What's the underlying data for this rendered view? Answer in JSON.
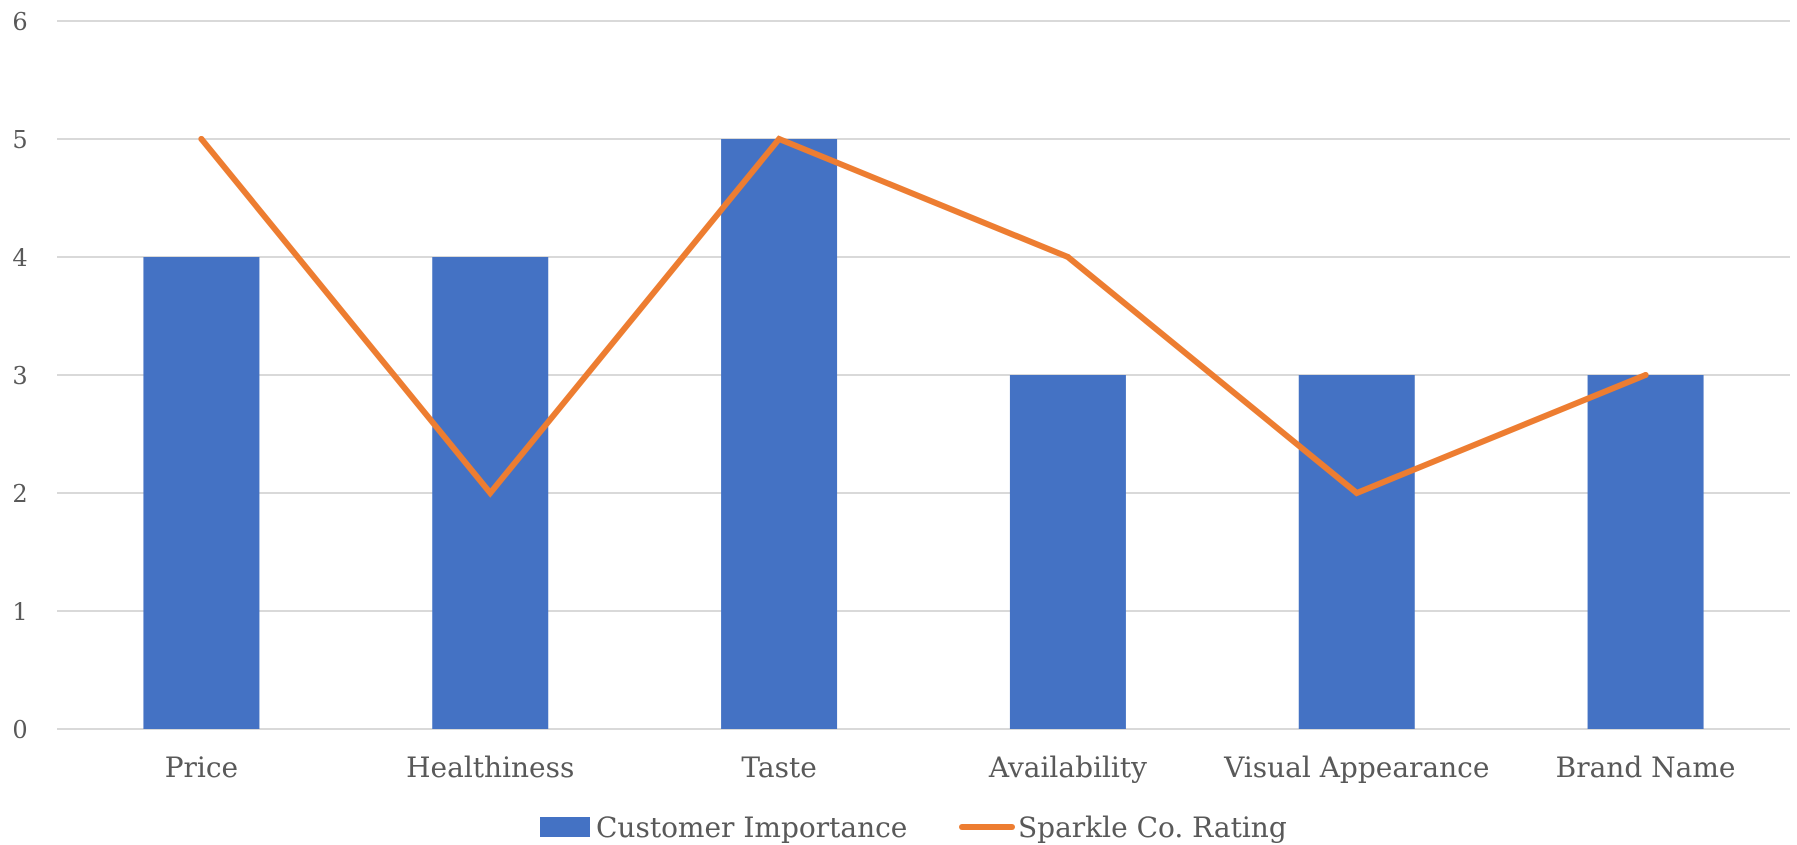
{
  "chart_data": {
    "type": "bar",
    "categories": [
      "Price",
      "Healthiness",
      "Taste",
      "Availability",
      "Visual Appearance",
      "Brand Name"
    ],
    "series": [
      {
        "name": "Customer Importance",
        "type": "bar",
        "color": "#4472C4",
        "values": [
          4,
          4,
          5,
          3,
          3,
          3
        ]
      },
      {
        "name": "Sparkle Co. Rating",
        "type": "line",
        "color": "#ED7D31",
        "values": [
          5,
          2,
          5,
          4,
          2,
          3
        ]
      }
    ],
    "yticks": [
      "0",
      "1",
      "2",
      "3",
      "4",
      "5",
      "6"
    ],
    "ylim": [
      0,
      6
    ],
    "grid": true,
    "legend_position": "bottom"
  }
}
